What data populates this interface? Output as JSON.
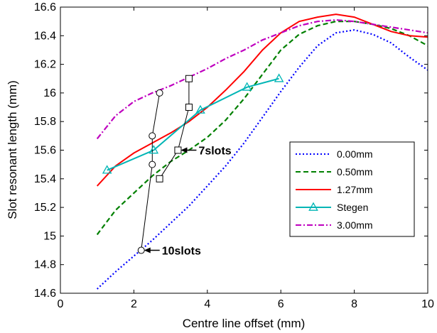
{
  "chart_data": {
    "type": "line",
    "xlabel": "Centre line offset (mm)",
    "ylabel": "Slot resonant length (mm)",
    "xlim": [
      0,
      10
    ],
    "ylim": [
      14.6,
      16.6
    ],
    "x_ticks": [
      0,
      2,
      4,
      6,
      8,
      10
    ],
    "y_ticks": [
      14.6,
      14.8,
      15,
      15.2,
      15.4,
      15.6,
      15.8,
      16,
      16.2,
      16.4,
      16.6
    ],
    "x_tick_labels": [
      "0",
      "2",
      "4",
      "6",
      "8",
      "10"
    ],
    "y_tick_labels": [
      "14.6",
      "14.8",
      "15",
      "15.2",
      "15.4",
      "15.6",
      "15.8",
      "16",
      "16.2",
      "16.4",
      "16.6"
    ],
    "grid": false,
    "legend_position": "right",
    "series": [
      {
        "name": "0.00mm",
        "color": "#0000ff",
        "style": "dotted",
        "marker": "none",
        "x": [
          1.0,
          1.5,
          2.0,
          2.5,
          3.0,
          3.5,
          4.0,
          4.5,
          5.0,
          5.5,
          6.0,
          6.5,
          7.0,
          7.5,
          8.0,
          8.5,
          9.0,
          9.5,
          10.0
        ],
        "y": [
          14.63,
          14.75,
          14.86,
          14.97,
          15.09,
          15.21,
          15.35,
          15.49,
          15.65,
          15.83,
          16.01,
          16.18,
          16.33,
          16.42,
          16.44,
          16.41,
          16.35,
          16.25,
          16.16
        ]
      },
      {
        "name": "0.50mm",
        "color": "#008000",
        "style": "dashed",
        "marker": "none",
        "x": [
          1.0,
          1.5,
          2.0,
          2.5,
          3.0,
          3.5,
          4.0,
          4.5,
          5.0,
          5.5,
          6.0,
          6.5,
          7.0,
          7.5,
          8.0,
          8.5,
          9.0,
          9.5,
          10.0
        ],
        "y": [
          15.01,
          15.18,
          15.3,
          15.42,
          15.52,
          15.6,
          15.69,
          15.81,
          15.96,
          16.13,
          16.3,
          16.41,
          16.47,
          16.5,
          16.5,
          16.48,
          16.45,
          16.4,
          16.33
        ]
      },
      {
        "name": "1.27mm",
        "color": "#ff0000",
        "style": "solid",
        "marker": "none",
        "x": [
          1.0,
          1.5,
          2.0,
          2.5,
          3.0,
          3.5,
          4.0,
          4.5,
          5.0,
          5.5,
          6.0,
          6.5,
          7.0,
          7.5,
          8.0,
          8.5,
          9.0,
          9.5,
          10.0
        ],
        "y": [
          15.35,
          15.49,
          15.58,
          15.65,
          15.72,
          15.8,
          15.9,
          16.02,
          16.15,
          16.3,
          16.42,
          16.5,
          16.53,
          16.55,
          16.53,
          16.48,
          16.43,
          16.4,
          16.39
        ]
      },
      {
        "name": "Stegen",
        "color": "#00b5b5",
        "style": "solid",
        "marker": "triangle",
        "x": [
          1.27,
          2.54,
          3.81,
          5.08,
          5.95
        ],
        "y": [
          15.46,
          15.6,
          15.88,
          16.04,
          16.1
        ]
      },
      {
        "name": "3.00mm",
        "color": "#bf00bf",
        "style": "dashdot",
        "marker": "none",
        "x": [
          1.0,
          1.5,
          2.0,
          2.5,
          3.0,
          3.5,
          4.0,
          4.5,
          5.0,
          5.5,
          6.0,
          6.5,
          7.0,
          7.5,
          8.0,
          8.5,
          9.0,
          9.5,
          10.0
        ],
        "y": [
          15.68,
          15.84,
          15.94,
          16.0,
          16.05,
          16.11,
          16.17,
          16.24,
          16.3,
          16.37,
          16.42,
          16.47,
          16.5,
          16.51,
          16.5,
          16.48,
          16.46,
          16.44,
          16.42
        ]
      }
    ],
    "extra_series": [
      {
        "label": "10slots",
        "color": "#000000",
        "marker": "circle",
        "x": [
          2.2,
          2.5,
          2.5,
          2.7
        ],
        "y": [
          14.9,
          15.5,
          15.7,
          16.0
        ]
      },
      {
        "label": "7slots",
        "color": "#000000",
        "marker": "square",
        "x": [
          2.7,
          3.2,
          3.5,
          3.5
        ],
        "y": [
          15.4,
          15.6,
          15.9,
          16.1
        ]
      }
    ],
    "annotations": [
      {
        "text": "7slots",
        "arrow_to": [
          3.2,
          15.6
        ]
      },
      {
        "text": "10slots",
        "arrow_to": [
          2.2,
          14.9
        ]
      }
    ]
  }
}
